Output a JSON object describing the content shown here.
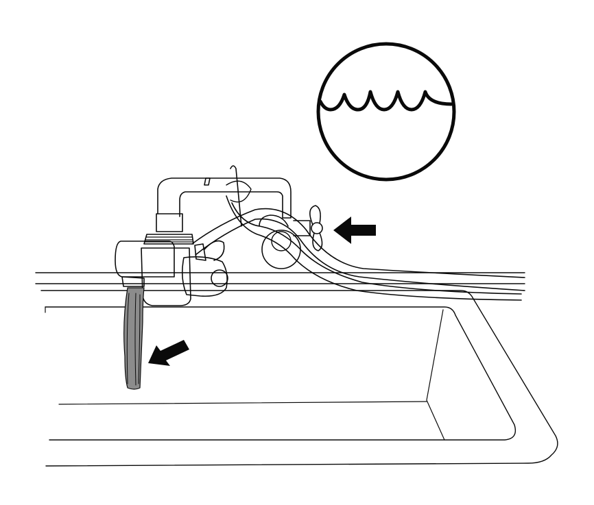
{
  "illustration": {
    "colors": {
      "ink": "#0a0a0a",
      "paper": "#ffffff",
      "water": "#8c8c8c"
    },
    "icons": {
      "water_symbol": "water-waves-icon",
      "valve_arrow": "arrow-left-icon",
      "water_flow_arrow": "arrow-down-left-icon"
    }
  }
}
